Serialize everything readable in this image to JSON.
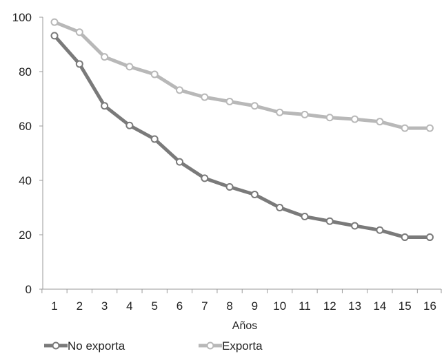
{
  "chart_data": {
    "type": "line",
    "title": "",
    "xlabel": "Años",
    "ylabel": "",
    "categories": [
      "1",
      "2",
      "3",
      "4",
      "5",
      "6",
      "7",
      "8",
      "9",
      "10",
      "11",
      "12",
      "13",
      "14",
      "15",
      "16"
    ],
    "ylim": [
      0,
      100
    ],
    "yticks": [
      "0",
      "20",
      "40",
      "60",
      "80",
      "100"
    ],
    "grid": false,
    "legend_position": "bottom-left",
    "series": [
      {
        "name": "No exporta",
        "color": "#7a7a7a",
        "values": [
          93.2,
          82.8,
          67.4,
          60.2,
          55.2,
          46.8,
          40.8,
          37.6,
          34.8,
          30.0,
          26.7,
          25.0,
          23.3,
          21.7,
          19.1,
          19.1
        ]
      },
      {
        "name": "Exporta",
        "color": "#b8b8b8",
        "values": [
          98.2,
          94.5,
          85.4,
          81.8,
          79.0,
          73.2,
          70.6,
          69.0,
          67.4,
          65.0,
          64.2,
          63.1,
          62.5,
          61.6,
          59.2,
          59.2
        ]
      }
    ]
  }
}
